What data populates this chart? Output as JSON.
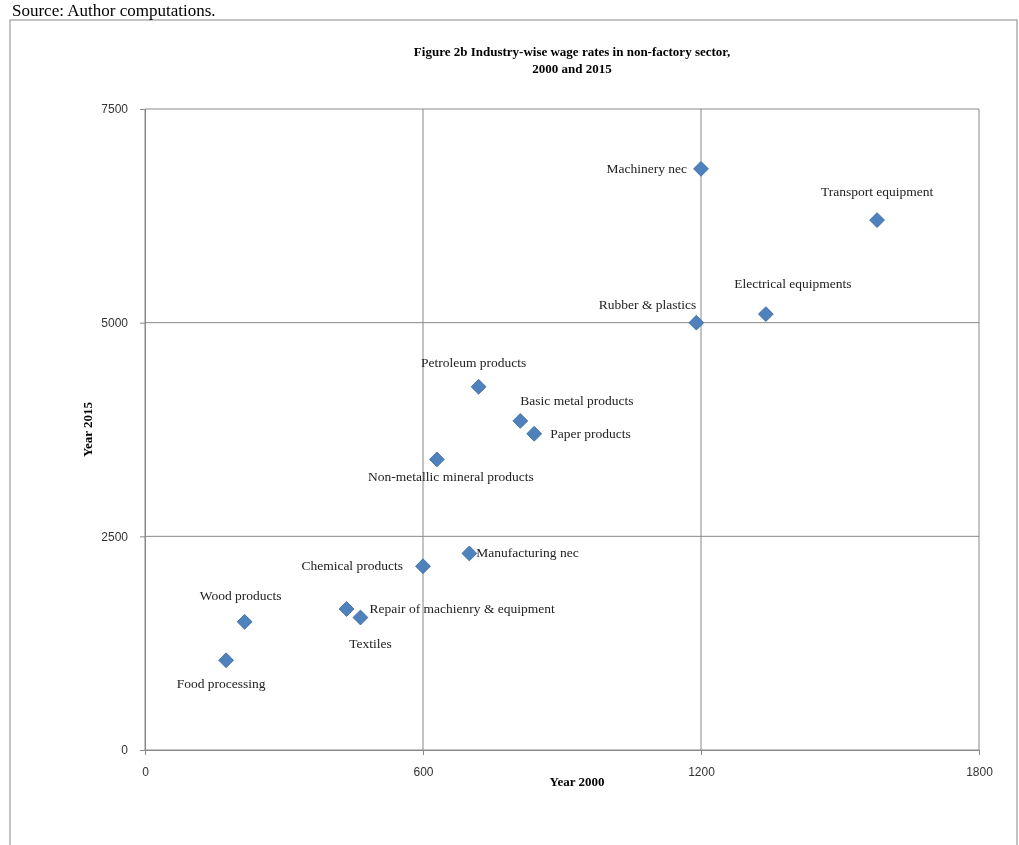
{
  "chart_data": {
    "type": "scatter",
    "title": "Figure 2b Industry-wise wage rates in non-factory sector,\n2000 and 2015",
    "xlabel": "Year 2000",
    "ylabel": "Year 2015",
    "xlim": [
      0,
      1800
    ],
    "xticks": [
      0,
      600,
      1200,
      1800
    ],
    "ylim": [
      0,
      7500
    ],
    "yticks": [
      0,
      2500,
      5000,
      7500
    ],
    "grid": true,
    "marker": "diamond",
    "series": [
      {
        "color": "#4f81bd",
        "x": [
          1200,
          1580,
          1340,
          1190,
          720,
          810,
          840,
          630,
          700,
          600,
          435,
          465,
          215,
          175
        ],
        "values": [
          6800,
          6200,
          5100,
          5000,
          4250,
          3850,
          3700,
          3400,
          2300,
          2150,
          1650,
          1550,
          1500,
          1050
        ]
      }
    ],
    "annotations": [
      "Source: Author computations.",
      {
        "text": "Machinery nec",
        "x": 1200,
        "y": 6800
      },
      {
        "text": "Transport equipment",
        "x": 1580,
        "y": 6200
      },
      {
        "text": "Electrical equipments",
        "x": 1340,
        "y": 5100
      },
      {
        "text": "Rubber & plastics",
        "x": 1190,
        "y": 5000
      },
      {
        "text": "Petroleum products",
        "x": 720,
        "y": 4250
      },
      {
        "text": "Basic metal products",
        "x": 810,
        "y": 3850
      },
      {
        "text": "Paper products",
        "x": 840,
        "y": 3700
      },
      {
        "text": "Non-metallic mineral  products",
        "x": 630,
        "y": 3400
      },
      {
        "text": "Manufacturing nec",
        "x": 700,
        "y": 2300
      },
      {
        "text": "Chemical products",
        "x": 600,
        "y": 2150
      },
      {
        "text": "Repair of machienry & equipment",
        "x": 435,
        "y": 1650
      },
      {
        "text": "Textiles",
        "x": 465,
        "y": 1550
      },
      {
        "text": "Wood products",
        "x": 215,
        "y": 1500
      },
      {
        "text": "Food processing",
        "x": 175,
        "y": 1050
      }
    ]
  }
}
